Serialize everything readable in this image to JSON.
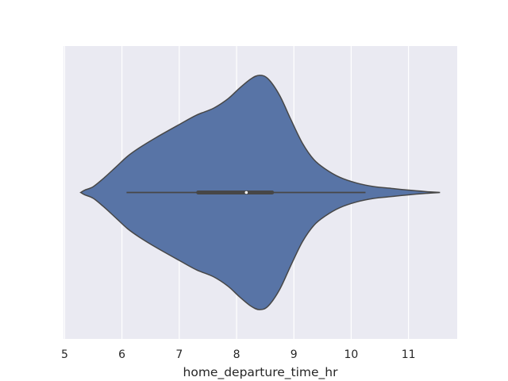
{
  "chart_data": {
    "type": "violin",
    "title": "",
    "xlabel": "home_departure_time_hr",
    "ylabel": "",
    "xlim": [
      4.98,
      11.85
    ],
    "xticks": [
      5,
      6,
      7,
      8,
      9,
      10,
      11
    ],
    "xtick_labels": [
      "5",
      "6",
      "7",
      "8",
      "9",
      "10",
      "11"
    ],
    "grid": true,
    "orientation": "horizontal",
    "violin": {
      "color": "#5874a6",
      "edge_color": "#474747",
      "x_min": 5.28,
      "x_max": 11.55,
      "max_half_width": 1.0,
      "density": [
        [
          5.28,
          0.0
        ],
        [
          5.35,
          0.02
        ],
        [
          5.5,
          0.05
        ],
        [
          5.7,
          0.13
        ],
        [
          5.9,
          0.22
        ],
        [
          6.1,
          0.31
        ],
        [
          6.3,
          0.38
        ],
        [
          6.6,
          0.47
        ],
        [
          7.0,
          0.58
        ],
        [
          7.3,
          0.66
        ],
        [
          7.6,
          0.72
        ],
        [
          7.85,
          0.8
        ],
        [
          8.05,
          0.89
        ],
        [
          8.25,
          0.97
        ],
        [
          8.4,
          1.0
        ],
        [
          8.55,
          0.97
        ],
        [
          8.75,
          0.83
        ],
        [
          8.95,
          0.62
        ],
        [
          9.15,
          0.42
        ],
        [
          9.35,
          0.28
        ],
        [
          9.55,
          0.2
        ],
        [
          9.8,
          0.13
        ],
        [
          10.1,
          0.08
        ],
        [
          10.4,
          0.05
        ],
        [
          10.7,
          0.035
        ],
        [
          11.0,
          0.02
        ],
        [
          11.3,
          0.008
        ],
        [
          11.55,
          0.0
        ]
      ]
    },
    "box": {
      "q1": 7.33,
      "median": 8.17,
      "q3": 8.62,
      "whisker_low": 6.08,
      "whisker_high": 10.25
    }
  }
}
